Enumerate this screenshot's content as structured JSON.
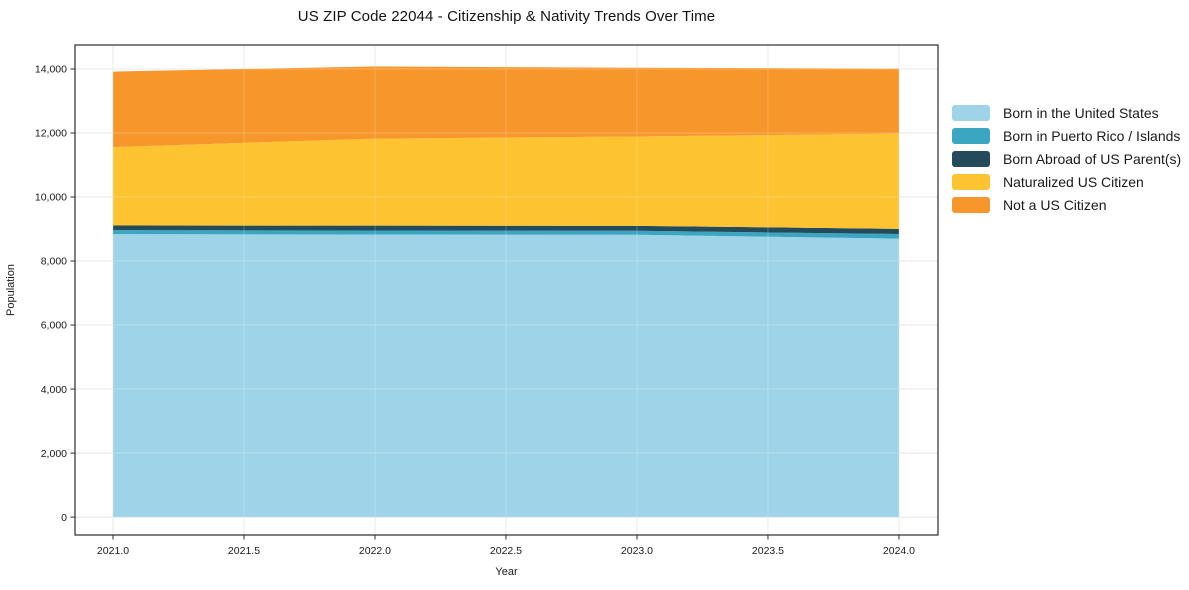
{
  "title": "US ZIP Code 22044 - Citizenship & Nativity Trends Over Time",
  "chart_data": {
    "type": "area",
    "stacked": true,
    "title": "US ZIP Code 22044 - Citizenship & Nativity Trends Over Time",
    "xlabel": "Year",
    "ylabel": "Population",
    "x": [
      2021,
      2022,
      2023,
      2024
    ],
    "series": [
      {
        "name": "Born in the United States",
        "color": "#9ED3E8",
        "values": [
          8840,
          8830,
          8820,
          8700
        ]
      },
      {
        "name": "Born in Puerto Rico / Islands",
        "color": "#3BA6C2",
        "values": [
          125,
          125,
          125,
          145
        ]
      },
      {
        "name": "Born Abroad of US Parent(s)",
        "color": "#234B5C",
        "values": [
          145,
          150,
          155,
          160
        ]
      },
      {
        "name": "Naturalized US Citizen",
        "color": "#FDC330",
        "values": [
          2450,
          2720,
          2790,
          2975
        ]
      },
      {
        "name": "Not a US Citizen",
        "color": "#F7962B",
        "values": [
          2360,
          2255,
          2150,
          2030
        ]
      }
    ],
    "x_ticks": [
      "2021.0",
      "2021.5",
      "2022.0",
      "2022.5",
      "2023.0",
      "2023.5",
      "2024.0"
    ],
    "x_tick_values": [
      2021,
      2021.5,
      2022,
      2022.5,
      2023,
      2023.5,
      2024
    ],
    "y_ticks": [
      "0",
      "2,000",
      "4,000",
      "6,000",
      "8,000",
      "10,000",
      "12,000",
      "14,000"
    ],
    "y_tick_values": [
      0,
      2000,
      4000,
      6000,
      8000,
      10000,
      12000,
      14000
    ],
    "xlim": [
      2020.855,
      2024.149
    ],
    "ylim": [
      -560,
      14750
    ],
    "grid": true,
    "legend_position": "right",
    "colors": {
      "grid": "#e5e5e5",
      "spine": "#2b2b2b",
      "background": "#ffffff"
    }
  }
}
